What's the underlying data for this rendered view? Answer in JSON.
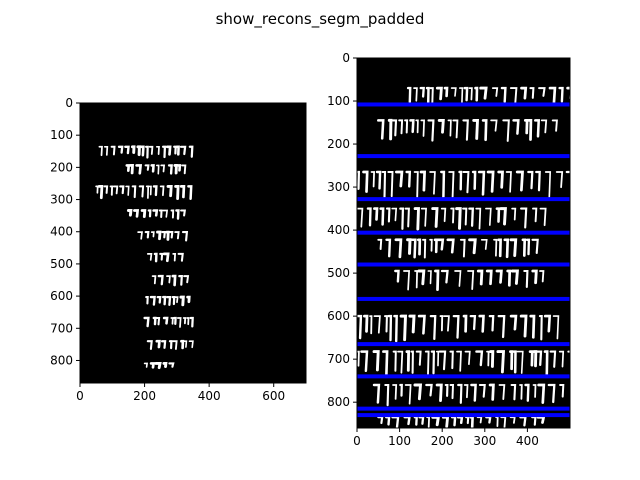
{
  "figure": {
    "title": "show_recons_segm_padded"
  },
  "colors": {
    "ink": "#ffffff",
    "background": "#000000",
    "separator": "#0000ff",
    "axis": "#000000"
  },
  "chart_data": [
    {
      "type": "image",
      "description_kind": "binary segmentation mask of handwritten text lines",
      "xlim": [
        0,
        700
      ],
      "ylim": [
        870,
        0
      ],
      "xticks": [
        0,
        200,
        400,
        600
      ],
      "yticks": [
        0,
        100,
        200,
        300,
        400,
        500,
        600,
        700,
        800
      ],
      "text_lines_y": [
        150,
        210,
        280,
        345,
        410,
        480,
        550,
        615,
        680,
        750,
        815
      ],
      "ink_rows": [
        {
          "x0": 60,
          "x1": 345,
          "y": 150,
          "h": 28
        },
        {
          "x0": 145,
          "x1": 330,
          "y": 205,
          "h": 22
        },
        {
          "x0": 50,
          "x1": 345,
          "y": 275,
          "h": 32
        },
        {
          "x0": 150,
          "x1": 330,
          "y": 345,
          "h": 22
        },
        {
          "x0": 180,
          "x1": 330,
          "y": 412,
          "h": 22
        },
        {
          "x0": 210,
          "x1": 325,
          "y": 480,
          "h": 22
        },
        {
          "x0": 225,
          "x1": 340,
          "y": 550,
          "h": 24
        },
        {
          "x0": 205,
          "x1": 345,
          "y": 615,
          "h": 24
        },
        {
          "x0": 200,
          "x1": 345,
          "y": 680,
          "h": 24
        },
        {
          "x0": 210,
          "x1": 345,
          "y": 752,
          "h": 24
        },
        {
          "x0": 200,
          "x1": 290,
          "y": 815,
          "h": 12
        }
      ]
    },
    {
      "type": "image",
      "description_kind": "padded reconstructed segmentation with line separators",
      "xlim": [
        0,
        500
      ],
      "ylim": [
        860,
        0
      ],
      "xticks": [
        0,
        100,
        200,
        300,
        400
      ],
      "yticks": [
        0,
        100,
        200,
        300,
        400,
        500,
        600,
        700,
        800
      ],
      "separators_y": [
        108,
        228,
        328,
        406,
        480,
        560,
        665,
        740,
        815,
        830
      ],
      "ink_rows": [
        {
          "x0": 120,
          "x1": 500,
          "y": 85,
          "h": 30
        },
        {
          "x0": 50,
          "x1": 470,
          "y": 165,
          "h": 40
        },
        {
          "x0": 0,
          "x1": 500,
          "y": 290,
          "h": 50
        },
        {
          "x0": 0,
          "x1": 450,
          "y": 370,
          "h": 40
        },
        {
          "x0": 50,
          "x1": 420,
          "y": 440,
          "h": 35
        },
        {
          "x0": 90,
          "x1": 430,
          "y": 515,
          "h": 40
        },
        {
          "x0": 0,
          "x1": 480,
          "y": 625,
          "h": 50
        },
        {
          "x0": 0,
          "x1": 500,
          "y": 705,
          "h": 45
        },
        {
          "x0": 40,
          "x1": 480,
          "y": 780,
          "h": 40
        },
        {
          "x0": 50,
          "x1": 430,
          "y": 845,
          "h": 20
        }
      ]
    }
  ]
}
